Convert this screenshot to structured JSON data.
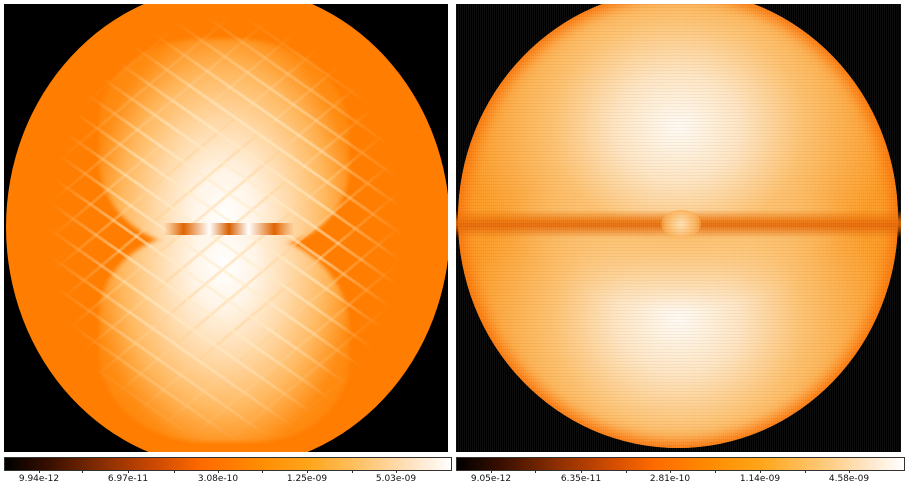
{
  "panels": [
    {
      "colorbar": {
        "tick_labels": [
          "9.94e-12",
          "6.97e-11",
          "3.08e-10",
          "1.25e-09",
          "5.03e-09"
        ]
      }
    },
    {
      "colorbar": {
        "tick_labels": [
          "9.05e-12",
          "6.35e-11",
          "2.81e-10",
          "1.14e-09",
          "4.58e-09"
        ]
      }
    }
  ],
  "colors": {
    "background": "#000000",
    "disc_base": "#ff7d00",
    "highlight": "#ffffff",
    "colormap": [
      "#000000",
      "#8a2e00",
      "#ff6a00",
      "#ffa51a",
      "#ffffff"
    ]
  }
}
